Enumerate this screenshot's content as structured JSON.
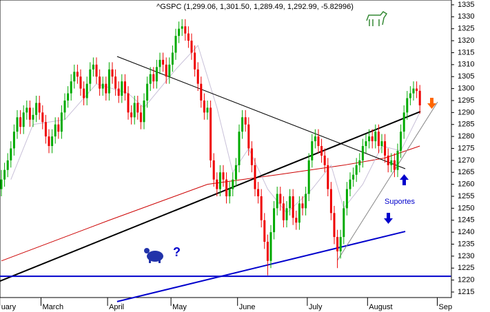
{
  "chart_data": {
    "type": "candlestick",
    "title": "^GSPC (1,299.06, 1,301.50, 1,289.49, 1,292.99, -5.82996)",
    "categories": [
      "uary",
      null,
      null,
      null,
      null,
      null,
      null,
      null,
      null,
      null,
      null,
      null,
      null,
      "March",
      null,
      null,
      null,
      null,
      null,
      null,
      null,
      null,
      null,
      null,
      null,
      null,
      null,
      null,
      null,
      null,
      null,
      null,
      null,
      null,
      "April",
      null,
      null,
      null,
      null,
      null,
      null,
      null,
      null,
      null,
      null,
      null,
      null,
      null,
      null,
      null,
      null,
      null,
      null,
      null,
      "May",
      null,
      null,
      null,
      null,
      null,
      null,
      null,
      null,
      null,
      null,
      null,
      null,
      null,
      null,
      null,
      null,
      null,
      null,
      null,
      null,
      "June",
      null,
      null,
      null,
      null,
      null,
      null,
      null,
      null,
      null,
      null,
      null,
      null,
      null,
      null,
      null,
      null,
      null,
      null,
      null,
      null,
      null,
      "July",
      null,
      null,
      null,
      null,
      null,
      null,
      null,
      null,
      null,
      null,
      null,
      null,
      null,
      null,
      null,
      null,
      null,
      null,
      "August",
      null,
      null,
      null,
      null,
      null,
      null,
      null,
      null,
      null,
      null,
      null,
      null,
      null,
      null,
      null,
      null,
      null,
      null,
      null,
      null,
      null,
      "Sep"
    ],
    "ohlc": [
      [
        1258,
        1266,
        1255,
        1262
      ],
      [
        1262,
        1269,
        1259,
        1266
      ],
      [
        1266,
        1273,
        1263,
        1270
      ],
      [
        1270,
        1278,
        1267,
        1275
      ],
      [
        1275,
        1285,
        1272,
        1282
      ],
      [
        1282,
        1291,
        1279,
        1288
      ],
      [
        1288,
        1291,
        1281,
        1284
      ],
      [
        1284,
        1293,
        1281,
        1290
      ],
      [
        1290,
        1295,
        1287,
        1292
      ],
      [
        1292,
        1295,
        1284,
        1287
      ],
      [
        1287,
        1292,
        1284,
        1289
      ],
      [
        1289,
        1297,
        1286,
        1294
      ],
      [
        1294,
        1297,
        1287,
        1290
      ],
      [
        1290,
        1293,
        1283,
        1286
      ],
      [
        1286,
        1289,
        1277,
        1280
      ],
      [
        1280,
        1283,
        1273,
        1276
      ],
      [
        1276,
        1283,
        1273,
        1280
      ],
      [
        1280,
        1288,
        1277,
        1285
      ],
      [
        1285,
        1288,
        1279,
        1282
      ],
      [
        1282,
        1293,
        1279,
        1290
      ],
      [
        1290,
        1298,
        1287,
        1295
      ],
      [
        1295,
        1301,
        1292,
        1298
      ],
      [
        1298,
        1306,
        1295,
        1303
      ],
      [
        1303,
        1310,
        1300,
        1307
      ],
      [
        1307,
        1310,
        1302,
        1305
      ],
      [
        1305,
        1308,
        1297,
        1300
      ],
      [
        1300,
        1303,
        1293,
        1296
      ],
      [
        1296,
        1305,
        1293,
        1302
      ],
      [
        1302,
        1311,
        1299,
        1308
      ],
      [
        1308,
        1313,
        1305,
        1310
      ],
      [
        1310,
        1313,
        1302,
        1305
      ],
      [
        1305,
        1308,
        1297,
        1300
      ],
      [
        1300,
        1305,
        1297,
        1302
      ],
      [
        1302,
        1305,
        1295,
        1298
      ],
      [
        1298,
        1311,
        1295,
        1308
      ],
      [
        1308,
        1311,
        1302,
        1305
      ],
      [
        1305,
        1308,
        1297,
        1300
      ],
      [
        1300,
        1303,
        1294,
        1297
      ],
      [
        1297,
        1306,
        1294,
        1303
      ],
      [
        1303,
        1306,
        1295,
        1298
      ],
      [
        1298,
        1301,
        1287,
        1290
      ],
      [
        1290,
        1293,
        1285,
        1288
      ],
      [
        1288,
        1297,
        1285,
        1294
      ],
      [
        1294,
        1297,
        1287,
        1290
      ],
      [
        1290,
        1293,
        1283,
        1286
      ],
      [
        1286,
        1298,
        1283,
        1295
      ],
      [
        1295,
        1305,
        1292,
        1302
      ],
      [
        1302,
        1309,
        1299,
        1306
      ],
      [
        1306,
        1309,
        1300,
        1303
      ],
      [
        1303,
        1312,
        1300,
        1309
      ],
      [
        1309,
        1315,
        1306,
        1312
      ],
      [
        1312,
        1315,
        1307,
        1310
      ],
      [
        1310,
        1313,
        1302,
        1305
      ],
      [
        1305,
        1313,
        1302,
        1310
      ],
      [
        1310,
        1318,
        1307,
        1315
      ],
      [
        1315,
        1325,
        1312,
        1322
      ],
      [
        1322,
        1328,
        1319,
        1325
      ],
      [
        1325,
        1329,
        1322,
        1326
      ],
      [
        1326,
        1329,
        1320,
        1323
      ],
      [
        1323,
        1326,
        1317,
        1320
      ],
      [
        1320,
        1323,
        1312,
        1315
      ],
      [
        1315,
        1318,
        1305,
        1308
      ],
      [
        1308,
        1311,
        1299,
        1302
      ],
      [
        1302,
        1305,
        1292,
        1295
      ],
      [
        1295,
        1298,
        1287,
        1290
      ],
      [
        1290,
        1295,
        1287,
        1292
      ],
      [
        1292,
        1295,
        1267,
        1270
      ],
      [
        1270,
        1273,
        1259,
        1262
      ],
      [
        1262,
        1265,
        1255,
        1258
      ],
      [
        1258,
        1268,
        1255,
        1265
      ],
      [
        1265,
        1268,
        1259,
        1262
      ],
      [
        1262,
        1265,
        1252,
        1255
      ],
      [
        1255,
        1261,
        1252,
        1258
      ],
      [
        1258,
        1265,
        1255,
        1262
      ],
      [
        1262,
        1271,
        1259,
        1268
      ],
      [
        1268,
        1285,
        1265,
        1282
      ],
      [
        1282,
        1291,
        1279,
        1288
      ],
      [
        1288,
        1291,
        1282,
        1285
      ],
      [
        1285,
        1288,
        1272,
        1275
      ],
      [
        1275,
        1278,
        1265,
        1268
      ],
      [
        1268,
        1271,
        1255,
        1258
      ],
      [
        1258,
        1261,
        1252,
        1255
      ],
      [
        1255,
        1258,
        1242,
        1245
      ],
      [
        1245,
        1248,
        1233,
        1236
      ],
      [
        1236,
        1239,
        1222,
        1228
      ],
      [
        1228,
        1243,
        1225,
        1240
      ],
      [
        1240,
        1253,
        1237,
        1250
      ],
      [
        1250,
        1259,
        1247,
        1256
      ],
      [
        1256,
        1259,
        1249,
        1252
      ],
      [
        1252,
        1255,
        1242,
        1245
      ],
      [
        1245,
        1253,
        1242,
        1250
      ],
      [
        1250,
        1258,
        1247,
        1255
      ],
      [
        1255,
        1258,
        1243,
        1246
      ],
      [
        1246,
        1249,
        1241,
        1244
      ],
      [
        1244,
        1255,
        1241,
        1252
      ],
      [
        1252,
        1255,
        1247,
        1250
      ],
      [
        1250,
        1259,
        1247,
        1256
      ],
      [
        1256,
        1273,
        1253,
        1270
      ],
      [
        1270,
        1281,
        1267,
        1278
      ],
      [
        1278,
        1283,
        1275,
        1280
      ],
      [
        1280,
        1283,
        1273,
        1276
      ],
      [
        1276,
        1279,
        1269,
        1272
      ],
      [
        1272,
        1275,
        1265,
        1268
      ],
      [
        1268,
        1271,
        1255,
        1258
      ],
      [
        1258,
        1261,
        1245,
        1248
      ],
      [
        1248,
        1251,
        1235,
        1238
      ],
      [
        1238,
        1241,
        1225,
        1232
      ],
      [
        1232,
        1241,
        1229,
        1238
      ],
      [
        1238,
        1253,
        1235,
        1250
      ],
      [
        1250,
        1261,
        1247,
        1258
      ],
      [
        1258,
        1265,
        1255,
        1262
      ],
      [
        1262,
        1267,
        1259,
        1264
      ],
      [
        1264,
        1271,
        1261,
        1268
      ],
      [
        1268,
        1273,
        1265,
        1270
      ],
      [
        1270,
        1279,
        1267,
        1276
      ],
      [
        1276,
        1281,
        1273,
        1278
      ],
      [
        1278,
        1283,
        1275,
        1280
      ],
      [
        1280,
        1283,
        1275,
        1278
      ],
      [
        1278,
        1285,
        1275,
        1282
      ],
      [
        1282,
        1285,
        1273,
        1276
      ],
      [
        1276,
        1281,
        1273,
        1278
      ],
      [
        1278,
        1281,
        1269,
        1272
      ],
      [
        1272,
        1275,
        1265,
        1268
      ],
      [
        1268,
        1273,
        1265,
        1270
      ],
      [
        1270,
        1273,
        1263,
        1266
      ],
      [
        1266,
        1277,
        1263,
        1274
      ],
      [
        1274,
        1285,
        1271,
        1282
      ],
      [
        1282,
        1293,
        1279,
        1290
      ],
      [
        1290,
        1299,
        1287,
        1296
      ],
      [
        1296,
        1301,
        1293,
        1298
      ],
      [
        1298,
        1303,
        1295,
        1300
      ],
      [
        1300,
        1303,
        1296,
        1299
      ],
      [
        1299.06,
        1301.5,
        1289.49,
        1292.99
      ],
      null,
      null,
      null,
      null,
      null,
      null,
      null
    ],
    "up_color": "#00aa00",
    "down_color": "#ee0000",
    "overlays": [
      {
        "color": "#cc0000",
        "width": 1,
        "points": [
          [
            0,
            1228
          ],
          [
            34,
            1245
          ],
          [
            65,
            1260
          ],
          [
            87,
            1264
          ],
          [
            108,
            1268
          ],
          [
            121,
            1271
          ],
          [
            132,
            1276
          ]
        ]
      },
      {
        "color": "#c8c0d8",
        "width": 1,
        "points": [
          [
            3,
            1262
          ],
          [
            10,
            1285
          ],
          [
            20,
            1287
          ],
          [
            30,
            1302
          ],
          [
            40,
            1298
          ],
          [
            45,
            1292
          ],
          [
            55,
            1308
          ],
          [
            62,
            1318
          ],
          [
            68,
            1292
          ],
          [
            73,
            1265
          ],
          [
            78,
            1275
          ],
          [
            84,
            1258
          ],
          [
            90,
            1248
          ],
          [
            98,
            1258
          ],
          [
            104,
            1268
          ],
          [
            108,
            1250
          ],
          [
            114,
            1260
          ],
          [
            120,
            1276
          ],
          [
            126,
            1274
          ],
          [
            132,
            1290
          ]
        ]
      },
      {
        "color": "#000000",
        "width": 1,
        "points": [
          [
            36.5,
            1313.4
          ],
          [
            127.4,
            1266.5
          ]
        ]
      },
      {
        "color": "#000000",
        "width": 2,
        "points": [
          [
            -0.4,
            1219.6
          ],
          [
            132.2,
            1290.4
          ]
        ]
      },
      {
        "color": "#0000cc",
        "width": 2,
        "points": [
          [
            36.5,
            1211
          ],
          [
            127.4,
            1240.3
          ]
        ]
      },
      {
        "color": "#888888",
        "width": 1,
        "points": [
          [
            106,
            1228.2
          ],
          [
            137.6,
            1294.4
          ]
        ]
      },
      {
        "color": "#0000cc",
        "width": 2,
        "points": [
          [
            -0.5,
            1221.6
          ],
          [
            141.8,
            1221.6
          ]
        ]
      }
    ],
    "annotations": [
      "Suportes",
      "?"
    ],
    "ylim": [
      1212.7,
      1337
    ],
    "yticks": [
      1215,
      1220,
      1225,
      1230,
      1235,
      1240,
      1245,
      1250,
      1255,
      1260,
      1265,
      1270,
      1275,
      1280,
      1285,
      1290,
      1295,
      1300,
      1305,
      1310,
      1315,
      1320,
      1325,
      1330,
      1335
    ]
  }
}
